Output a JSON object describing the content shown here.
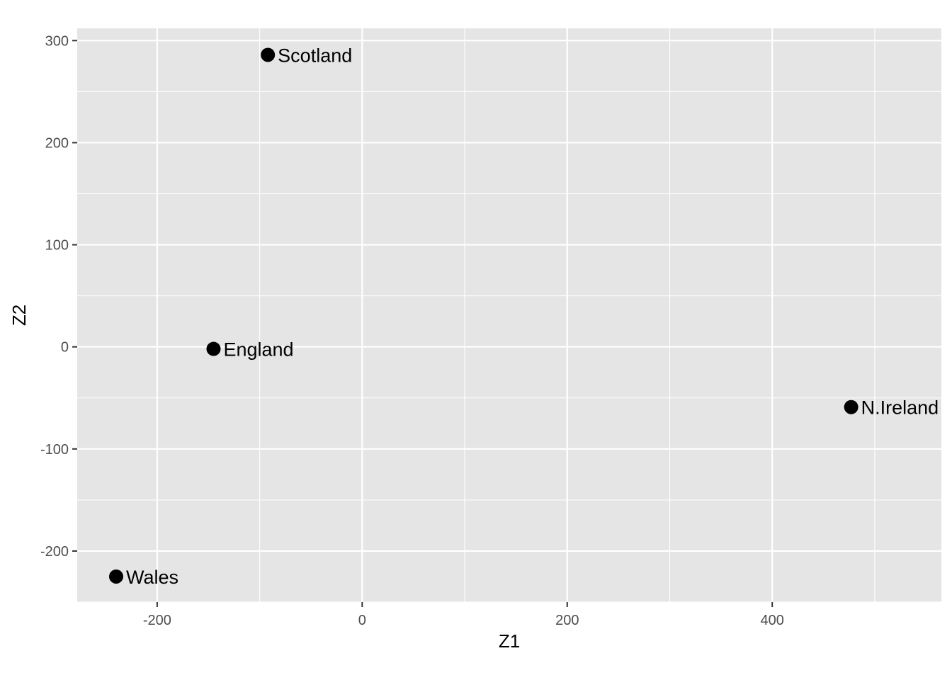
{
  "chart_data": {
    "type": "scatter",
    "title": "",
    "xlabel": "Z1",
    "ylabel": "Z2",
    "xlim": [
      -278,
      565
    ],
    "ylim": [
      -250,
      312
    ],
    "x_ticks": [
      -200,
      0,
      200,
      400
    ],
    "y_ticks": [
      -200,
      -100,
      0,
      100,
      200,
      300
    ],
    "x_tick_labels": [
      "-200",
      "0",
      "200",
      "400"
    ],
    "y_tick_labels": [
      "-200",
      "-100",
      "0",
      "100",
      "200",
      "300"
    ],
    "grid": true,
    "legend": "none",
    "colors": {
      "panel": "#e5e5e5",
      "grid": "#ffffff",
      "point": "#000000",
      "text": "#000000",
      "tick_text": "#4d4d4d"
    },
    "points": [
      {
        "label": "Scotland",
        "x": -92,
        "y": 286
      },
      {
        "label": "England",
        "x": -145,
        "y": -2
      },
      {
        "label": "N.Ireland",
        "x": 477,
        "y": -59
      },
      {
        "label": "Wales",
        "x": -240,
        "y": -225
      }
    ]
  }
}
